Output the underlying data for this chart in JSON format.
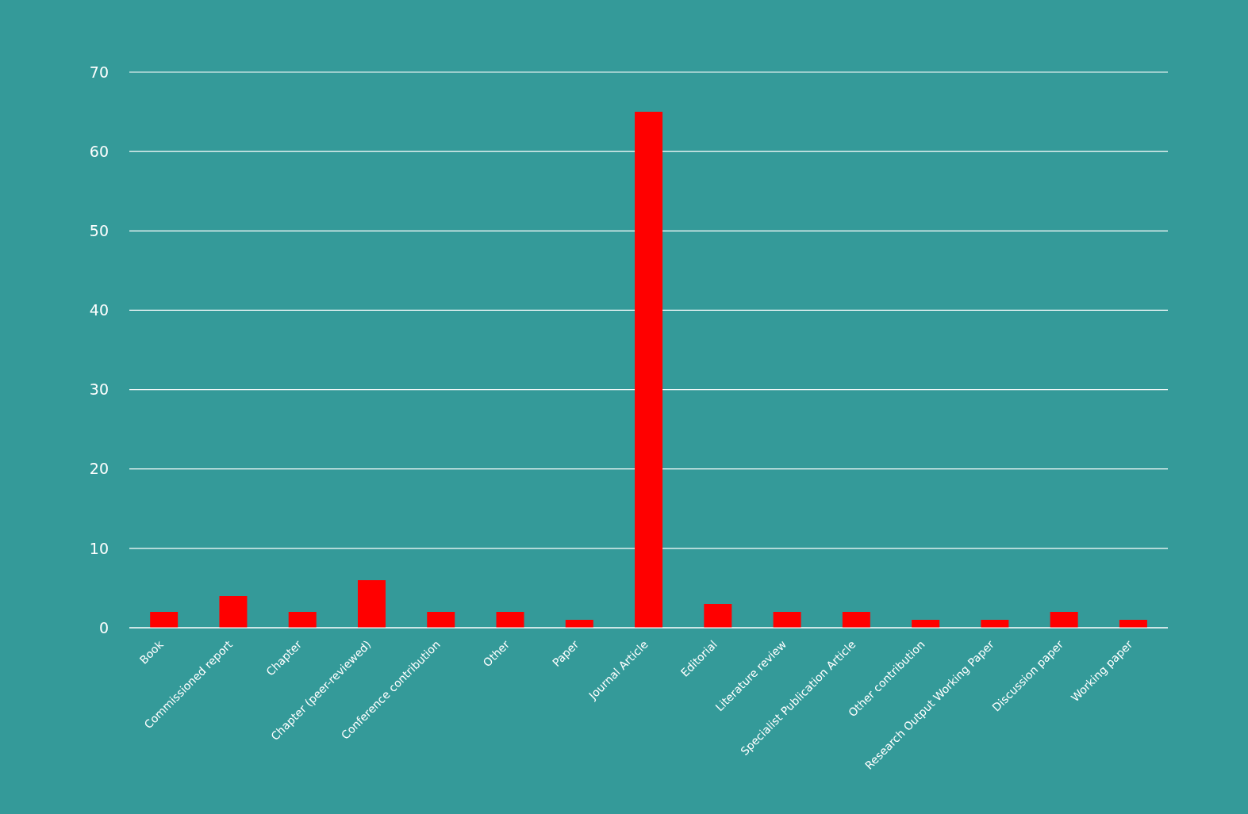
{
  "chart_data": {
    "type": "bar",
    "categories": [
      "Book",
      "Commissioned report",
      "Chapter",
      "Chapter (peer-reviewed)",
      "Conference contribution",
      "Other",
      "Paper",
      "Journal Article",
      "Editorial",
      "Literature review",
      "Specialist Publication Article",
      "Other contribution",
      "Research Output Working Paper",
      "Discussion paper",
      "Working paper"
    ],
    "values": [
      2,
      4,
      2,
      6,
      2,
      2,
      1,
      65,
      3,
      2,
      2,
      1,
      1,
      2,
      1
    ],
    "color": "#ff0000",
    "ylim": [
      0,
      70
    ],
    "yticks": [
      0,
      10,
      20,
      30,
      40,
      50,
      60,
      70
    ],
    "grid": "y"
  }
}
